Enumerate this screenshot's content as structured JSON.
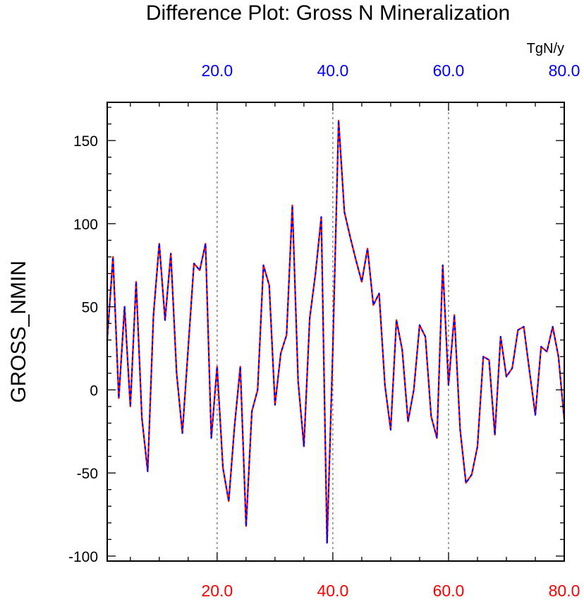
{
  "chart_data": {
    "type": "line",
    "title": "Difference Plot: Gross N Mineralization",
    "units_label": "TgN/y",
    "ylabel": "GROSS_NMIN",
    "xlabel": "",
    "xlim": [
      1,
      80
    ],
    "ylim": [
      -103,
      173
    ],
    "y_ticks": [
      {
        "value": -100,
        "label": "-100"
      },
      {
        "value": -50,
        "label": "-50"
      },
      {
        "value": 0,
        "label": "0"
      },
      {
        "value": 50,
        "label": "50"
      },
      {
        "value": 100,
        "label": "100"
      },
      {
        "value": 150,
        "label": "150"
      }
    ],
    "x_ticks_bottom": [
      {
        "value": 20,
        "label": "20.0"
      },
      {
        "value": 40,
        "label": "40.0"
      },
      {
        "value": 60,
        "label": "60.0"
      },
      {
        "value": 80,
        "label": "80.0"
      }
    ],
    "x_ticks_top": [
      {
        "value": 20,
        "label": "20.0"
      },
      {
        "value": 40,
        "label": "40.0"
      },
      {
        "value": 60,
        "label": "60.0"
      },
      {
        "value": 80,
        "label": "80.0"
      }
    ],
    "grid_x": [
      20,
      40,
      60
    ],
    "colors": {
      "series_a": "#ff0000",
      "series_b": "#0000ff",
      "top_ticks": "#0000ff",
      "bottom_ticks": "#ff0000",
      "grid": "#666666"
    },
    "x": [
      1,
      2,
      3,
      4,
      5,
      6,
      7,
      8,
      9,
      10,
      11,
      12,
      13,
      14,
      15,
      16,
      17,
      18,
      19,
      20,
      21,
      22,
      23,
      24,
      25,
      26,
      27,
      28,
      29,
      30,
      31,
      32,
      33,
      34,
      35,
      36,
      37,
      38,
      39,
      40,
      41,
      42,
      43,
      44,
      45,
      46,
      47,
      48,
      49,
      50,
      51,
      52,
      53,
      54,
      55,
      56,
      57,
      58,
      59,
      60,
      61,
      62,
      63,
      64,
      65,
      66,
      67,
      68,
      69,
      70,
      71,
      72,
      73,
      74,
      75,
      76,
      77,
      78,
      79,
      80
    ],
    "series": [
      {
        "values": [
          30,
          80,
          -5,
          50,
          -10,
          65,
          -17,
          -49,
          45,
          88,
          42,
          82,
          10,
          -26,
          25,
          76,
          72,
          88,
          -29,
          14,
          -47,
          -67,
          -22,
          14,
          -82,
          -13,
          0,
          75,
          63,
          -9,
          22,
          33,
          111,
          5,
          -34,
          43,
          70,
          104,
          -92,
          25,
          162,
          107,
          92,
          78,
          65,
          85,
          51,
          58,
          3,
          -24,
          42,
          24,
          -19,
          0,
          39,
          32,
          -16,
          -29,
          75,
          3,
          45,
          -24,
          -56,
          -51,
          -34,
          20,
          18,
          -27,
          32,
          8,
          13,
          36,
          38,
          11,
          -15,
          26,
          23,
          38,
          20,
          -18
        ]
      }
    ]
  }
}
